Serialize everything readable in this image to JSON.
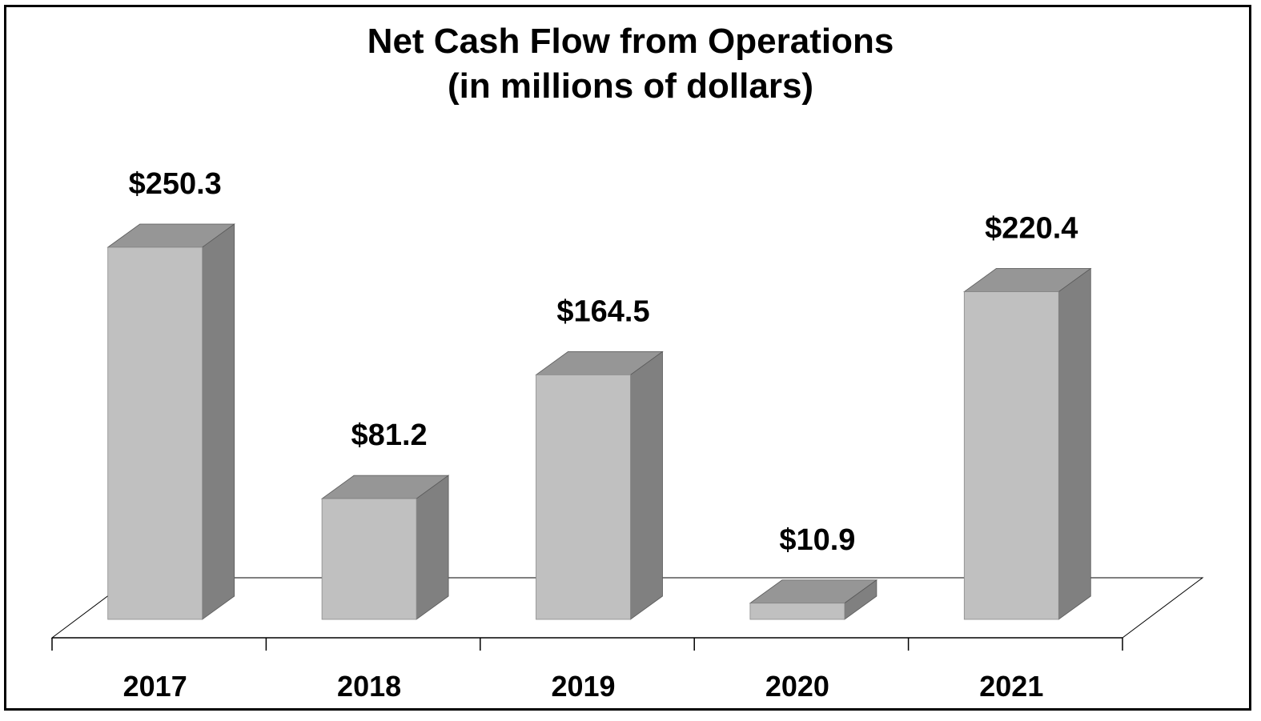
{
  "chart_data": {
    "type": "bar",
    "title": "Net Cash Flow from Operations",
    "subtitle": "(in millions of dollars)",
    "categories": [
      "2017",
      "2018",
      "2019",
      "2020",
      "2021"
    ],
    "values": [
      250.3,
      81.2,
      164.5,
      10.9,
      220.4
    ],
    "value_labels": [
      "$250.3",
      "$81.2",
      "$164.5",
      "$10.9",
      "$220.4"
    ],
    "xlabel": "",
    "ylabel": "",
    "ylim": [
      0,
      250.3
    ],
    "grid": false,
    "legend": "none",
    "style": "3d",
    "colors": {
      "bar_front": "#c0c0c0",
      "bar_side": "#808080",
      "bar_top": "#969696",
      "frame": "#000000"
    }
  }
}
